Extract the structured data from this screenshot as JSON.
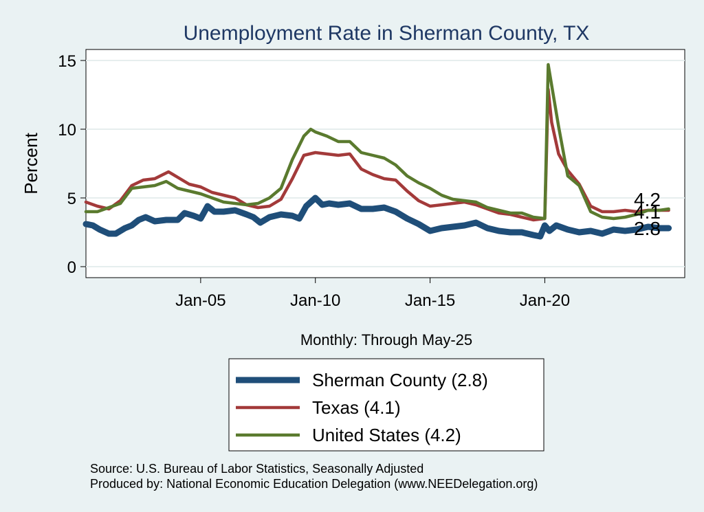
{
  "chart_data": {
    "type": "line",
    "title": "Unemployment Rate in Sherman  County, TX",
    "xlabel": "Monthly: Through May-25",
    "ylabel": "Percent",
    "ylim": [
      -0.8,
      15.8
    ],
    "yticks": [
      0,
      5,
      10,
      15
    ],
    "xlim": [
      2000.0,
      2026.1
    ],
    "xticks": [
      {
        "value": 2005.0,
        "label": "Jan-05"
      },
      {
        "value": 2010.0,
        "label": "Jan-10"
      },
      {
        "value": 2015.0,
        "label": "Jan-15"
      },
      {
        "value": 2020.0,
        "label": "Jan-20"
      }
    ],
    "grid": true,
    "legend_position": "bottom",
    "series": [
      {
        "name": "Sherman  County",
        "legend_label": "Sherman  County (2.8)",
        "end_label": "2.8",
        "color": "#1f4e79",
        "points": [
          [
            2000.0,
            3.1
          ],
          [
            2000.3,
            3.0
          ],
          [
            2000.6,
            2.7
          ],
          [
            2001.0,
            2.4
          ],
          [
            2001.3,
            2.4
          ],
          [
            2001.7,
            2.8
          ],
          [
            2002.0,
            3.0
          ],
          [
            2002.3,
            3.4
          ],
          [
            2002.6,
            3.6
          ],
          [
            2003.0,
            3.3
          ],
          [
            2003.5,
            3.4
          ],
          [
            2004.0,
            3.4
          ],
          [
            2004.3,
            3.9
          ],
          [
            2004.7,
            3.7
          ],
          [
            2005.0,
            3.5
          ],
          [
            2005.3,
            4.4
          ],
          [
            2005.6,
            4.0
          ],
          [
            2006.0,
            4.0
          ],
          [
            2006.5,
            4.1
          ],
          [
            2007.0,
            3.8
          ],
          [
            2007.3,
            3.6
          ],
          [
            2007.6,
            3.2
          ],
          [
            2008.0,
            3.6
          ],
          [
            2008.5,
            3.8
          ],
          [
            2009.0,
            3.7
          ],
          [
            2009.3,
            3.5
          ],
          [
            2009.6,
            4.4
          ],
          [
            2010.0,
            5.0
          ],
          [
            2010.3,
            4.5
          ],
          [
            2010.6,
            4.6
          ],
          [
            2011.0,
            4.5
          ],
          [
            2011.5,
            4.6
          ],
          [
            2012.0,
            4.2
          ],
          [
            2012.5,
            4.2
          ],
          [
            2013.0,
            4.3
          ],
          [
            2013.5,
            4.0
          ],
          [
            2014.0,
            3.5
          ],
          [
            2014.5,
            3.1
          ],
          [
            2015.0,
            2.6
          ],
          [
            2015.5,
            2.8
          ],
          [
            2016.0,
            2.9
          ],
          [
            2016.5,
            3.0
          ],
          [
            2017.0,
            3.2
          ],
          [
            2017.5,
            2.8
          ],
          [
            2018.0,
            2.6
          ],
          [
            2018.5,
            2.5
          ],
          [
            2019.0,
            2.5
          ],
          [
            2019.5,
            2.3
          ],
          [
            2019.8,
            2.2
          ],
          [
            2020.0,
            3.0
          ],
          [
            2020.2,
            2.6
          ],
          [
            2020.5,
            3.0
          ],
          [
            2021.0,
            2.7
          ],
          [
            2021.5,
            2.5
          ],
          [
            2022.0,
            2.6
          ],
          [
            2022.5,
            2.4
          ],
          [
            2023.0,
            2.7
          ],
          [
            2023.5,
            2.6
          ],
          [
            2024.0,
            2.7
          ],
          [
            2024.5,
            2.9
          ],
          [
            2025.0,
            2.8
          ],
          [
            2025.4,
            2.8
          ]
        ]
      },
      {
        "name": "Texas",
        "legend_label": "Texas (4.1)",
        "end_label": "4.1",
        "color": "#a33a3a",
        "points": [
          [
            2000.0,
            4.7
          ],
          [
            2000.5,
            4.4
          ],
          [
            2001.0,
            4.2
          ],
          [
            2001.5,
            4.8
          ],
          [
            2002.0,
            5.9
          ],
          [
            2002.5,
            6.3
          ],
          [
            2003.0,
            6.4
          ],
          [
            2003.6,
            6.9
          ],
          [
            2004.0,
            6.5
          ],
          [
            2004.5,
            6.0
          ],
          [
            2005.0,
            5.8
          ],
          [
            2005.5,
            5.4
          ],
          [
            2006.0,
            5.2
          ],
          [
            2006.5,
            5.0
          ],
          [
            2007.0,
            4.5
          ],
          [
            2007.5,
            4.3
          ],
          [
            2008.0,
            4.4
          ],
          [
            2008.5,
            4.9
          ],
          [
            2009.0,
            6.4
          ],
          [
            2009.5,
            8.1
          ],
          [
            2010.0,
            8.3
          ],
          [
            2010.5,
            8.2
          ],
          [
            2011.0,
            8.1
          ],
          [
            2011.5,
            8.2
          ],
          [
            2012.0,
            7.1
          ],
          [
            2012.5,
            6.7
          ],
          [
            2013.0,
            6.4
          ],
          [
            2013.5,
            6.3
          ],
          [
            2014.0,
            5.5
          ],
          [
            2014.5,
            4.8
          ],
          [
            2015.0,
            4.4
          ],
          [
            2015.5,
            4.5
          ],
          [
            2016.0,
            4.6
          ],
          [
            2016.5,
            4.7
          ],
          [
            2017.0,
            4.5
          ],
          [
            2017.5,
            4.2
          ],
          [
            2018.0,
            3.9
          ],
          [
            2018.5,
            3.8
          ],
          [
            2019.0,
            3.6
          ],
          [
            2019.5,
            3.4
          ],
          [
            2020.0,
            3.5
          ],
          [
            2020.15,
            12.9
          ],
          [
            2020.3,
            10.5
          ],
          [
            2020.6,
            8.2
          ],
          [
            2021.0,
            7.0
          ],
          [
            2021.5,
            6.0
          ],
          [
            2022.0,
            4.4
          ],
          [
            2022.5,
            4.0
          ],
          [
            2023.0,
            4.0
          ],
          [
            2023.5,
            4.1
          ],
          [
            2024.0,
            4.0
          ],
          [
            2024.5,
            4.1
          ],
          [
            2025.0,
            4.1
          ],
          [
            2025.4,
            4.1
          ]
        ]
      },
      {
        "name": "United States",
        "legend_label": "United States (4.2)",
        "end_label": "4.2",
        "color": "#5a7a2e",
        "points": [
          [
            2000.0,
            4.0
          ],
          [
            2000.5,
            4.0
          ],
          [
            2001.0,
            4.3
          ],
          [
            2001.5,
            4.6
          ],
          [
            2002.0,
            5.7
          ],
          [
            2002.5,
            5.8
          ],
          [
            2003.0,
            5.9
          ],
          [
            2003.5,
            6.2
          ],
          [
            2004.0,
            5.7
          ],
          [
            2004.5,
            5.5
          ],
          [
            2005.0,
            5.3
          ],
          [
            2005.5,
            5.0
          ],
          [
            2006.0,
            4.7
          ],
          [
            2006.5,
            4.6
          ],
          [
            2007.0,
            4.5
          ],
          [
            2007.5,
            4.6
          ],
          [
            2008.0,
            5.0
          ],
          [
            2008.5,
            5.7
          ],
          [
            2009.0,
            7.8
          ],
          [
            2009.5,
            9.5
          ],
          [
            2009.8,
            10.0
          ],
          [
            2010.0,
            9.8
          ],
          [
            2010.5,
            9.5
          ],
          [
            2011.0,
            9.1
          ],
          [
            2011.5,
            9.1
          ],
          [
            2012.0,
            8.3
          ],
          [
            2012.5,
            8.1
          ],
          [
            2013.0,
            7.9
          ],
          [
            2013.5,
            7.4
          ],
          [
            2014.0,
            6.6
          ],
          [
            2014.5,
            6.1
          ],
          [
            2015.0,
            5.7
          ],
          [
            2015.5,
            5.2
          ],
          [
            2016.0,
            4.9
          ],
          [
            2016.5,
            4.8
          ],
          [
            2017.0,
            4.7
          ],
          [
            2017.5,
            4.3
          ],
          [
            2018.0,
            4.1
          ],
          [
            2018.5,
            3.9
          ],
          [
            2019.0,
            3.9
          ],
          [
            2019.5,
            3.6
          ],
          [
            2020.0,
            3.5
          ],
          [
            2020.15,
            14.7
          ],
          [
            2020.3,
            13.2
          ],
          [
            2020.6,
            10.2
          ],
          [
            2021.0,
            6.6
          ],
          [
            2021.5,
            5.9
          ],
          [
            2022.0,
            4.0
          ],
          [
            2022.5,
            3.6
          ],
          [
            2023.0,
            3.5
          ],
          [
            2023.5,
            3.6
          ],
          [
            2024.0,
            3.8
          ],
          [
            2024.5,
            4.1
          ],
          [
            2025.0,
            4.1
          ],
          [
            2025.4,
            4.2
          ]
        ]
      }
    ],
    "notes": [
      "Source: U.S. Bureau of Labor Statistics, Seasonally Adjusted",
      "Produced by: National Economic Education Delegation (www.NEEDelegation.org)"
    ]
  }
}
